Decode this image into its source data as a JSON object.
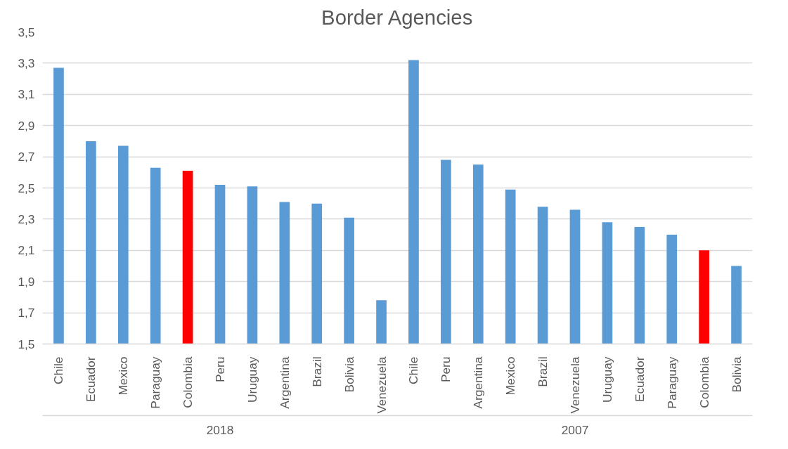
{
  "chart_data": {
    "type": "bar",
    "title": "Border Agencies",
    "categories": [
      "Chile",
      "Ecuador",
      "Mexico",
      "Paraguay",
      "Colombia",
      "Peru",
      "Uruguay",
      "Argentina",
      "Brazil",
      "Bolivia",
      "Venezuela",
      "Chile",
      "Peru",
      "Argentina",
      "Mexico",
      "Brazil",
      "Venezuela",
      "Uruguay",
      "Ecuador",
      "Paraguay",
      "Colombia",
      "Bolivia"
    ],
    "values": [
      3.27,
      2.8,
      2.77,
      2.63,
      2.61,
      2.52,
      2.51,
      2.41,
      2.4,
      2.31,
      1.78,
      3.32,
      2.68,
      2.65,
      2.49,
      2.38,
      2.36,
      2.28,
      2.25,
      2.2,
      2.1,
      2.0
    ],
    "colors": [
      "#5b9bd5",
      "#5b9bd5",
      "#5b9bd5",
      "#5b9bd5",
      "#ff0000",
      "#5b9bd5",
      "#5b9bd5",
      "#5b9bd5",
      "#5b9bd5",
      "#5b9bd5",
      "#5b9bd5",
      "#5b9bd5",
      "#5b9bd5",
      "#5b9bd5",
      "#5b9bd5",
      "#5b9bd5",
      "#5b9bd5",
      "#5b9bd5",
      "#5b9bd5",
      "#5b9bd5",
      "#ff0000",
      "#5b9bd5"
    ],
    "annotations": [
      "2018",
      "2007"
    ],
    "ylim": [
      1.5,
      3.5
    ],
    "yticks": [
      {
        "value": 1.5,
        "label": "1,5"
      },
      {
        "value": 1.7,
        "label": "1,7"
      },
      {
        "value": 1.9,
        "label": "1,9"
      },
      {
        "value": 2.1,
        "label": "2,1"
      },
      {
        "value": 2.3,
        "label": "2,3"
      },
      {
        "value": 2.5,
        "label": "2,5"
      },
      {
        "value": 2.7,
        "label": "2,7"
      },
      {
        "value": 2.9,
        "label": "2,9"
      },
      {
        "value": 3.1,
        "label": "3,1"
      },
      {
        "value": 3.3,
        "label": "3,3"
      },
      {
        "value": 3.5,
        "label": "3,5"
      }
    ],
    "grid": "y"
  }
}
